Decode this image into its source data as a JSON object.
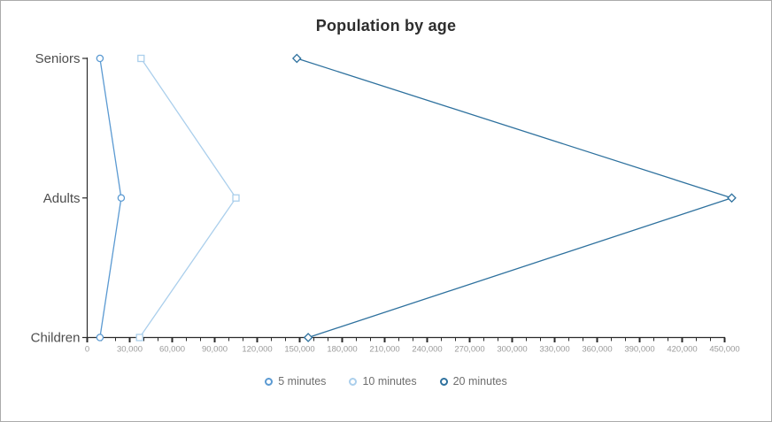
{
  "title": "Population by age",
  "chart_data": {
    "type": "line",
    "orientation": "horizontal-category",
    "title": "Population by age",
    "xlabel": "",
    "ylabel": "",
    "categories": [
      "Seniors",
      "Adults",
      "Children"
    ],
    "series": [
      {
        "name": "5 minutes",
        "marker": "circle",
        "color": "#5b9ad2",
        "legend_ring_weight": 2,
        "values": [
          9000,
          24000,
          9000
        ]
      },
      {
        "name": "10 minutes",
        "marker": "square",
        "color": "#abcfec",
        "legend_ring_weight": 2,
        "values": [
          38000,
          105000,
          37000
        ]
      },
      {
        "name": "20 minutes",
        "marker": "diamond",
        "color": "#2e719e",
        "legend_ring_weight": 2.5,
        "values": [
          148000,
          455000,
          156000
        ]
      }
    ],
    "xlim": [
      0,
      450000
    ],
    "x_major_tick_step": 30000,
    "x_minor_tick_step": 10000,
    "x_tick_labels": [
      "0",
      "30,000",
      "60,000",
      "90,000",
      "120,000",
      "150,000",
      "180,000",
      "210,000",
      "240,000",
      "270,000",
      "300,000",
      "330,000",
      "360,000",
      "390,000",
      "420,000",
      "450,000"
    ],
    "grid": false,
    "legend_position": "bottom"
  },
  "theme": {
    "background": "#ffffff",
    "border_color": "#ababab",
    "title_color": "#2e2e2e",
    "axis_color": "#2b2b2b",
    "tick_label_color": "#9a9a9a",
    "category_label_color": "#4d4d4d",
    "legend_text_color": "#6e6e6e",
    "marker_fill": "#ffffff"
  }
}
